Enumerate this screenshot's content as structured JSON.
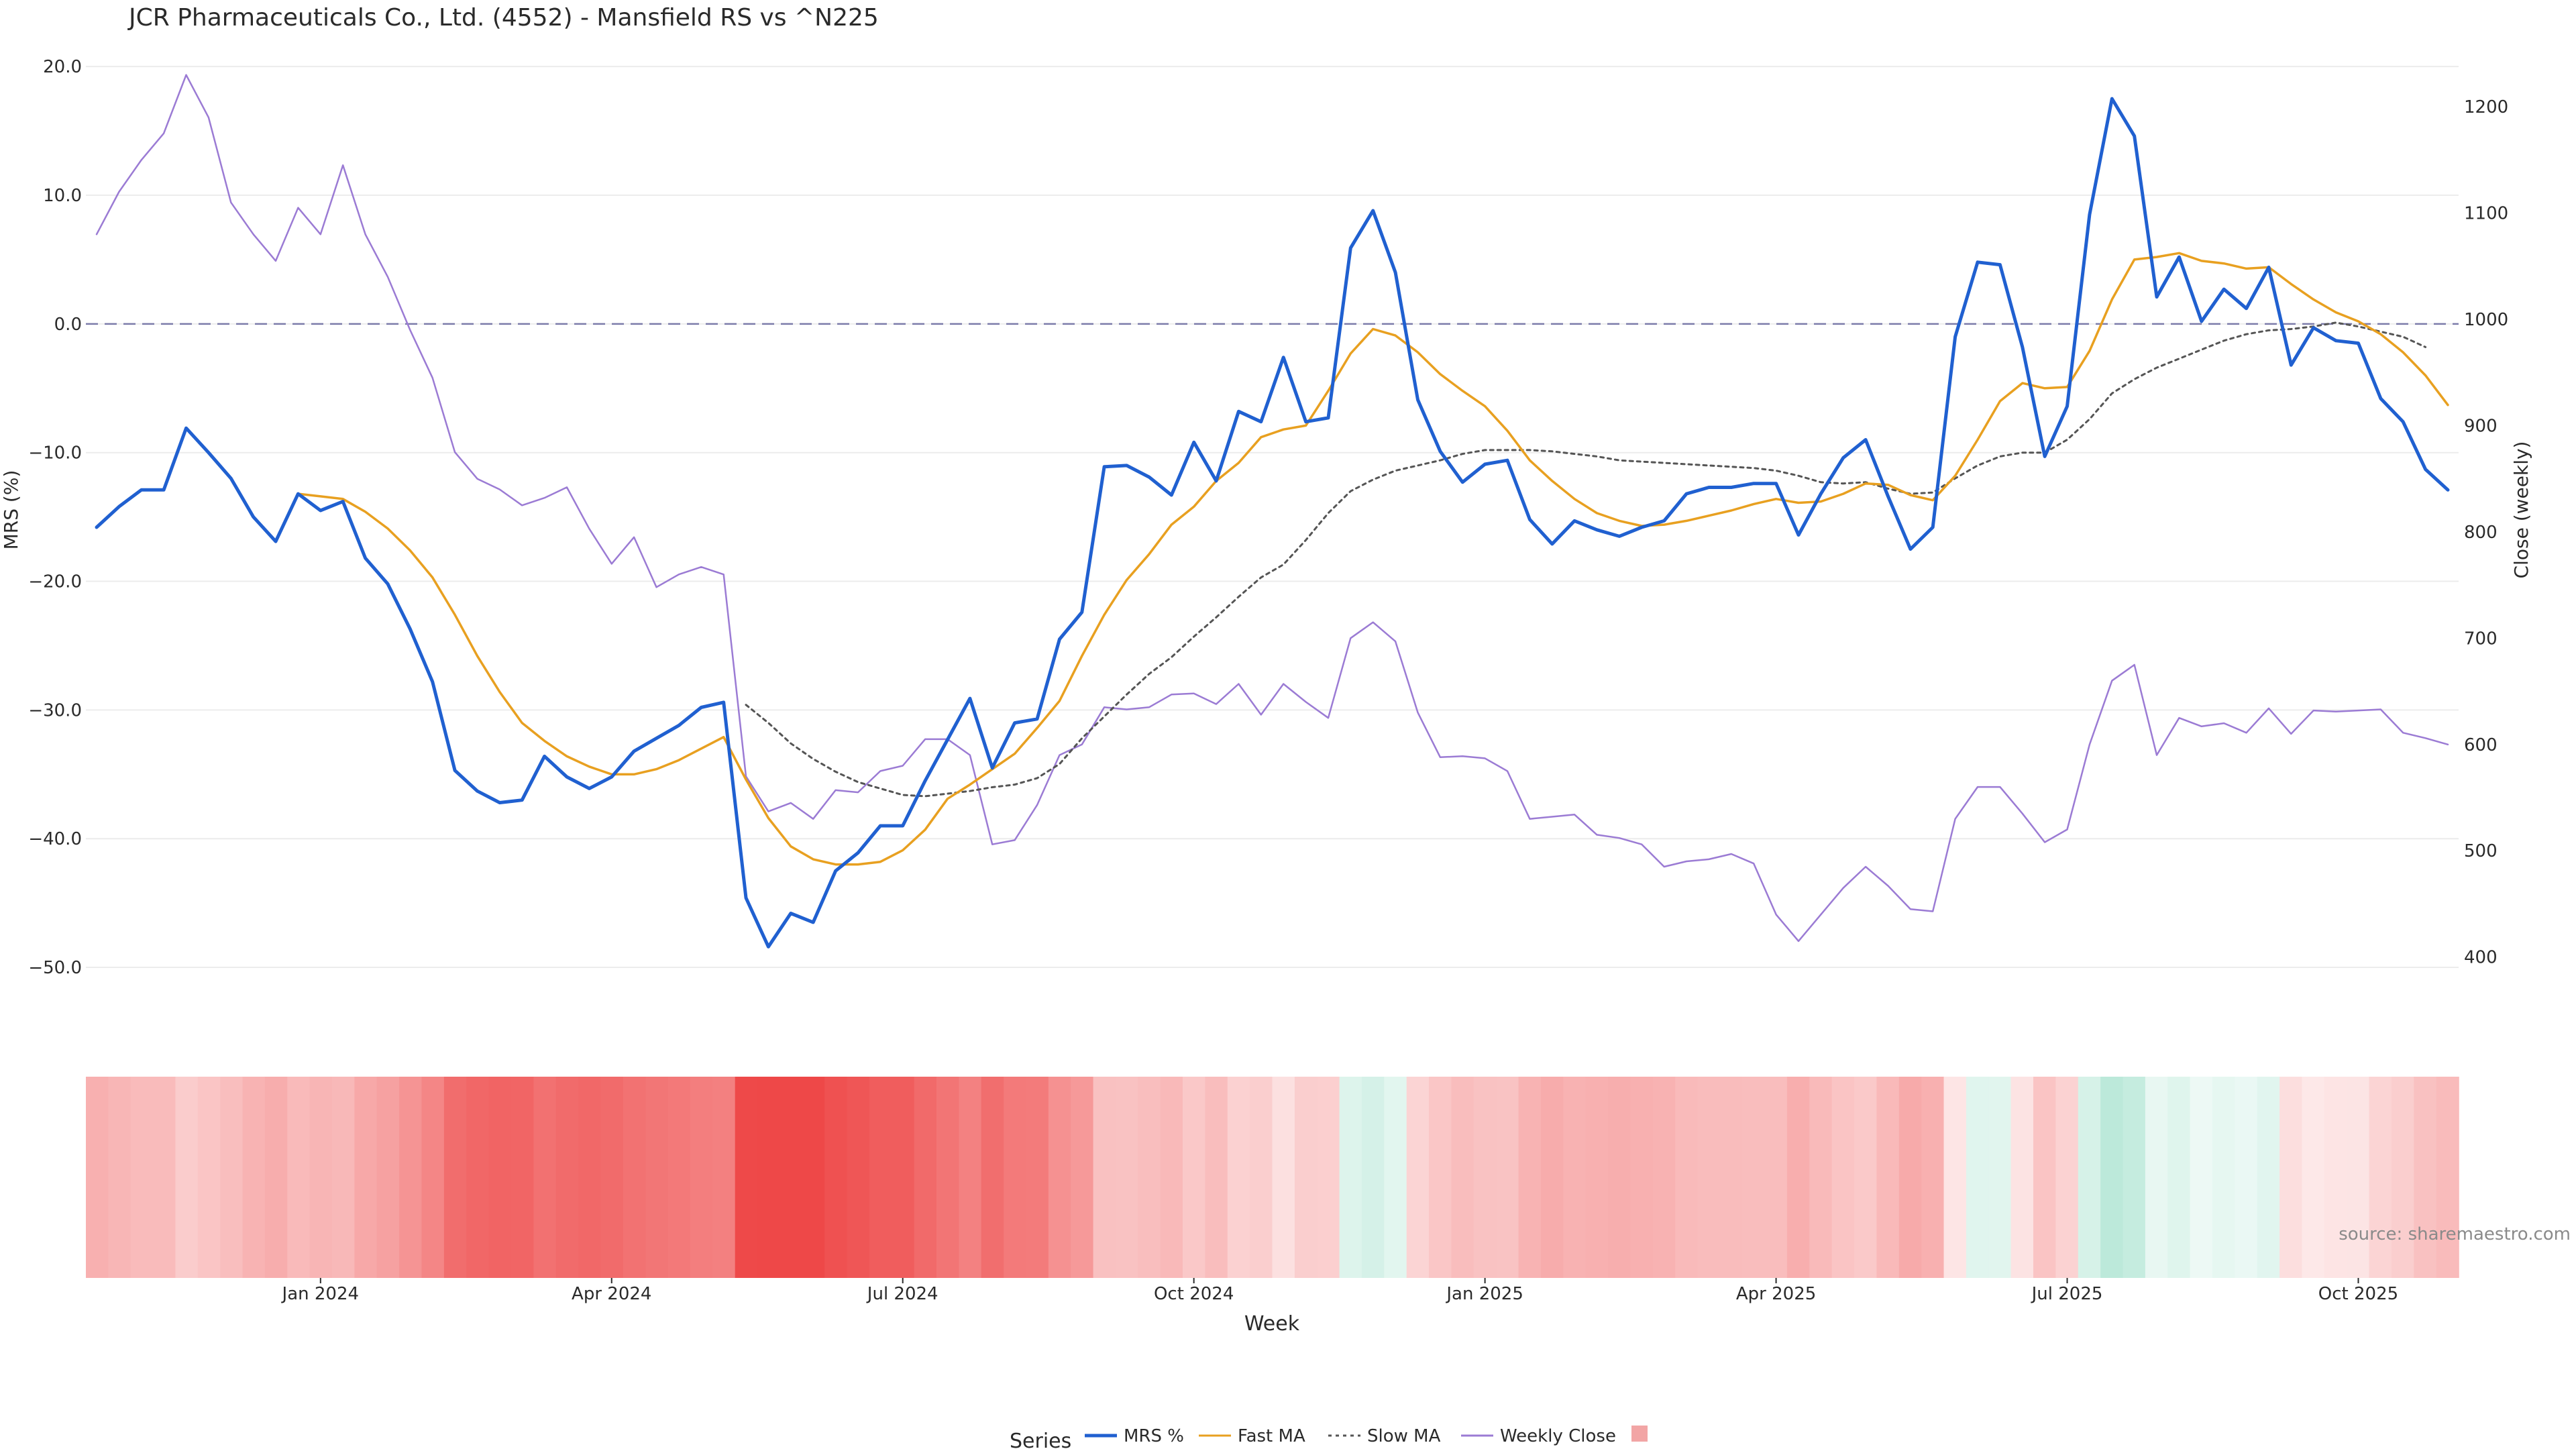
{
  "colors": {
    "mrs": "#2060d0",
    "fast": "#e8a020",
    "slow": "#555555",
    "close": "#9b7bd4",
    "zero": "#7c7caa",
    "grid": "#ececec",
    "heat_pos": "#6fd0b0",
    "heat_neg": "#ee4848"
  },
  "chart_data": {
    "type": "line",
    "title": "JCR Pharmaceuticals Co., Ltd. (4552) - Mansfield RS vs ^N225",
    "xlabel": "Week",
    "ylabel_left": "MRS (%)",
    "ylabel_right": "Close (weekly)",
    "ylim_left": [
      -52.5,
      21
    ],
    "ylim_right": [
      360,
      1250
    ],
    "left_ticks": [
      20,
      10,
      0,
      -10,
      -20,
      -30,
      -40,
      -50
    ],
    "left_tick_labels": [
      "20.0",
      "10.0",
      "0.0",
      "−10.0",
      "−20.0",
      "−30.0",
      "−40.0",
      "−50.0"
    ],
    "right_ticks": [
      1200,
      1100,
      1000,
      900,
      800,
      700,
      600,
      500,
      400
    ],
    "right_tick_labels": [
      "1200",
      "1100",
      "1000",
      "900",
      "800",
      "700",
      "600",
      "500",
      "400"
    ],
    "x_ticks": [
      {
        "label": "Jan 2024",
        "week": 10
      },
      {
        "label": "Apr 2024",
        "week": 23
      },
      {
        "label": "Jul 2024",
        "week": 36
      },
      {
        "label": "Oct 2024",
        "week": 49
      },
      {
        "label": "Jan 2025",
        "week": 62
      },
      {
        "label": "Apr 2025",
        "week": 75
      },
      {
        "label": "Jul 2025",
        "week": 88
      },
      {
        "label": "Oct 2025",
        "week": 101
      }
    ],
    "reference_line": {
      "y": 0,
      "style": "dashed"
    },
    "series": [
      {
        "name": "MRS %",
        "axis": "left",
        "style": "solid",
        "start": 0,
        "values": [
          -15.8,
          -14.2,
          -12.9,
          -12.9,
          -8.1,
          -10.0,
          -12.0,
          -15.0,
          -16.9,
          -13.2,
          -14.5,
          -13.8,
          -18.2,
          -20.2,
          -23.7,
          -27.8,
          -34.7,
          -36.3,
          -37.2,
          -37.0,
          -33.6,
          -35.2,
          -36.1,
          -35.2,
          -33.2,
          -32.2,
          -31.2,
          -29.8,
          -29.4,
          -44.6,
          -48.4,
          -45.8,
          -46.5,
          -42.5,
          -41.1,
          -39.0,
          -39.0,
          -35.5,
          -32.3,
          -29.1,
          -34.5,
          -31.0,
          -30.7,
          -24.5,
          -22.4,
          -11.1,
          -11.0,
          -11.9,
          -13.3,
          -9.2,
          -12.2,
          -6.8,
          -7.6,
          -2.6,
          -7.6,
          -7.3,
          5.9,
          8.8,
          4.0,
          -5.9,
          -9.9,
          -12.3,
          -10.9,
          -10.6,
          -15.2,
          -17.1,
          -15.3,
          -16.0,
          -16.5,
          -15.8,
          -15.3,
          -13.2,
          -12.7,
          -12.7,
          -12.4,
          -12.4,
          -16.4,
          -13.2,
          -10.4,
          -9.0,
          -13.4,
          -17.5,
          -15.8,
          -1.0,
          4.8,
          4.6,
          -1.8,
          -10.3,
          -6.4,
          8.5,
          17.5,
          14.6,
          2.1,
          5.2,
          0.2,
          2.7,
          1.2,
          4.4,
          -3.2,
          -0.3,
          -1.3,
          -1.5,
          -5.8,
          -7.6,
          -11.3,
          -12.9
        ]
      },
      {
        "name": "Fast MA",
        "axis": "left",
        "style": "solid",
        "start": 9,
        "values": [
          -13.2,
          -13.4,
          -13.6,
          -14.6,
          -15.9,
          -17.6,
          -19.7,
          -22.6,
          -25.8,
          -28.6,
          -31.0,
          -32.4,
          -33.6,
          -34.4,
          -35.0,
          -35.0,
          -34.6,
          -33.9,
          -33.0,
          -32.1,
          -35.4,
          -38.4,
          -40.6,
          -41.6,
          -42.0,
          -42.0,
          -41.8,
          -40.9,
          -39.3,
          -36.9,
          -35.8,
          -34.6,
          -33.4,
          -31.4,
          -29.3,
          -25.8,
          -22.6,
          -19.9,
          -17.9,
          -15.6,
          -14.2,
          -12.2,
          -10.8,
          -8.8,
          -8.2,
          -7.9,
          -5.2,
          -2.3,
          -0.4,
          -0.9,
          -2.2,
          -3.9,
          -5.2,
          -6.4,
          -8.3,
          -10.6,
          -12.2,
          -13.6,
          -14.7,
          -15.3,
          -15.7,
          -15.6,
          -15.3,
          -14.9,
          -14.5,
          -14.0,
          -13.6,
          -13.9,
          -13.8,
          -13.2,
          -12.4,
          -12.5,
          -13.3,
          -13.7,
          -11.8,
          -9.0,
          -6.0,
          -4.6,
          -5.0,
          -4.9,
          -2.1,
          1.9,
          5.0,
          5.2,
          5.5,
          4.9,
          4.7,
          4.3,
          4.4,
          3.1,
          1.9,
          0.9,
          0.2,
          -0.8,
          -2.2,
          -4.0,
          -6.3
        ]
      },
      {
        "name": "Slow MA",
        "axis": "left",
        "style": "dotted",
        "start": 29,
        "values": [
          -29.6,
          -31.0,
          -32.6,
          -33.8,
          -34.8,
          -35.6,
          -36.1,
          -36.6,
          -36.7,
          -36.5,
          -36.3,
          -36.0,
          -35.8,
          -35.3,
          -34.2,
          -32.2,
          -30.5,
          -28.8,
          -27.2,
          -25.9,
          -24.3,
          -22.8,
          -21.2,
          -19.7,
          -18.7,
          -16.8,
          -14.7,
          -13.0,
          -12.1,
          -11.4,
          -11.0,
          -10.6,
          -10.1,
          -9.8,
          -9.8,
          -9.8,
          -9.9,
          -10.1,
          -10.3,
          -10.6,
          -10.7,
          -10.8,
          -10.9,
          -11.0,
          -11.1,
          -11.2,
          -11.4,
          -11.8,
          -12.3,
          -12.4,
          -12.3,
          -12.8,
          -13.2,
          -13.1,
          -12.0,
          -11.0,
          -10.3,
          -10.0,
          -10.0,
          -9.0,
          -7.4,
          -5.4,
          -4.3,
          -3.4,
          -2.7,
          -2.0,
          -1.3,
          -0.8,
          -0.5,
          -0.4,
          -0.2,
          0.1,
          -0.2,
          -0.6,
          -1.0,
          -1.8
        ]
      },
      {
        "name": "Weekly Close",
        "axis": "right",
        "style": "thin",
        "start": 0,
        "values": [
          1080,
          1120,
          1150,
          1175,
          1230,
          1190,
          1110,
          1080,
          1055,
          1105,
          1080,
          1145,
          1080,
          1040,
          990,
          945,
          875,
          850,
          840,
          825,
          832,
          842,
          803,
          770,
          795,
          748,
          760,
          767,
          760,
          570,
          537,
          545,
          530,
          557,
          555,
          575,
          580,
          605,
          605,
          590,
          506,
          510,
          543,
          590,
          600,
          635,
          633,
          635,
          647,
          648,
          638,
          657,
          628,
          657,
          640,
          625,
          700,
          715,
          697,
          630,
          588,
          589,
          587,
          575,
          530,
          532,
          534,
          515,
          512,
          506,
          485,
          490,
          492,
          497,
          488,
          440,
          415,
          440,
          465,
          485,
          467,
          445,
          443,
          530,
          560,
          560,
          535,
          508,
          520,
          600,
          660,
          675,
          590,
          625,
          617,
          620,
          611,
          634,
          610,
          632,
          631,
          632,
          633,
          611,
          606,
          600
        ]
      }
    ],
    "heat_strip": {
      "description": "MRS value shaded per week",
      "values": [
        -15.8,
        -14.2,
        -12.9,
        -12.9,
        -8.1,
        -10.0,
        -12.0,
        -15.0,
        -16.9,
        -13.2,
        -14.5,
        -13.8,
        -18.2,
        -20.2,
        -23.7,
        -27.8,
        -34.7,
        -36.3,
        -37.2,
        -37.0,
        -33.6,
        -35.2,
        -36.1,
        -35.2,
        -33.2,
        -32.2,
        -31.2,
        -29.8,
        -29.4,
        -44.6,
        -48.4,
        -45.8,
        -46.5,
        -42.5,
        -41.1,
        -39.0,
        -39.0,
        -35.5,
        -32.3,
        -29.1,
        -34.5,
        -31.0,
        -30.7,
        -24.5,
        -22.4,
        -11.1,
        -11.0,
        -11.9,
        -13.3,
        -9.2,
        -12.2,
        -6.8,
        -7.6,
        -2.6,
        -7.6,
        -7.3,
        5.9,
        8.8,
        4.0,
        -5.9,
        -9.9,
        -12.3,
        -10.9,
        -10.6,
        -15.2,
        -17.1,
        -15.3,
        -16.0,
        -16.5,
        -15.8,
        -15.3,
        -13.2,
        -12.7,
        -12.7,
        -12.4,
        -12.4,
        -16.4,
        -13.2,
        -10.4,
        -9.0,
        -13.4,
        -17.5,
        -15.8,
        -1.0,
        4.8,
        4.6,
        -1.8,
        -10.3,
        -6.4,
        8.5,
        17.5,
        14.6,
        2.1,
        5.2,
        0.2,
        2.7,
        1.2,
        4.4,
        -3.2,
        -0.3,
        -1.3,
        -1.5,
        -5.8,
        -7.6,
        -11.3,
        -12.9
      ]
    },
    "legend": {
      "placement": "bottom-center",
      "title": "Series",
      "items": [
        "MRS %",
        "Fast MA",
        "Slow MA",
        "Weekly Close",
        ""
      ]
    },
    "source": "source: sharemaestro.com"
  }
}
